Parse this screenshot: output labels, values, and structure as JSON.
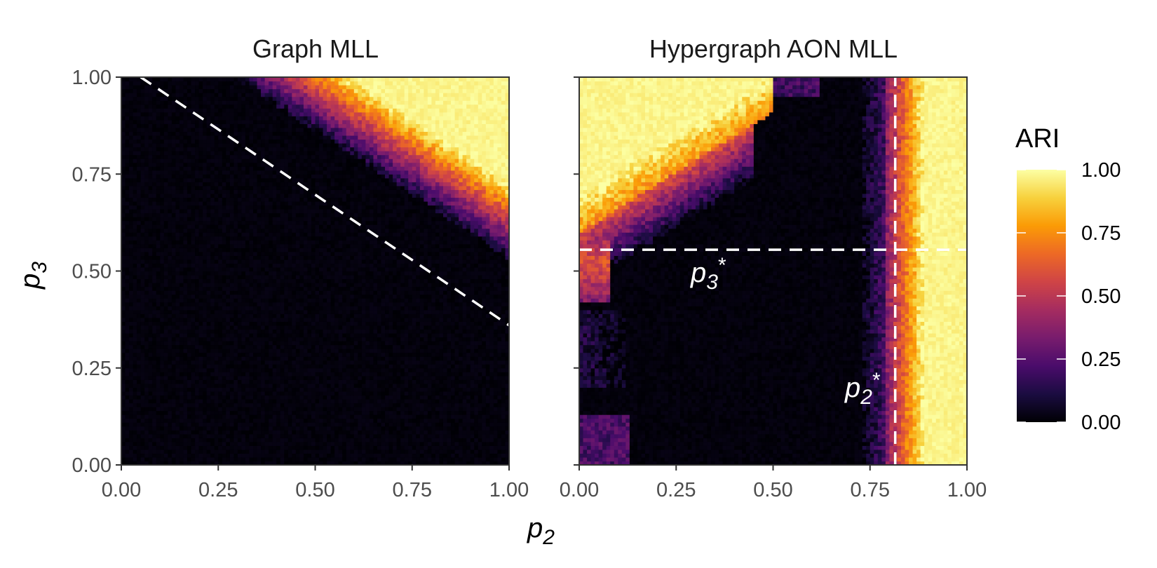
{
  "chart_data": [
    {
      "type": "heatmap",
      "title": "Graph MLL",
      "xlabel": "p2",
      "ylabel": "p3",
      "xlim": [
        0,
        1
      ],
      "ylim": [
        0,
        1
      ],
      "x_ticks": [
        "0.00",
        "0.25",
        "0.50",
        "0.75",
        "1.00"
      ],
      "y_ticks": [
        "0.00",
        "0.25",
        "0.50",
        "0.75",
        "1.00"
      ],
      "value": "ARI",
      "grid_resolution": 100,
      "reference_lines": [
        {
          "kind": "dashed",
          "from": {
            "x": 0.05,
            "y": 1.0
          },
          "to": {
            "x": 1.0,
            "y": 0.36
          }
        }
      ],
      "regions": [
        {
          "description": "black (ARI ~0) below diagonal boundary from (0.29,1.0) to (1.0,0.53)"
        },
        {
          "description": "bright yellow (ARI ~1) in upper-right corner; orange transition band"
        }
      ]
    },
    {
      "type": "heatmap",
      "title": "Hypergraph AON MLL",
      "xlabel": "p2",
      "ylabel": "p3",
      "xlim": [
        0,
        1
      ],
      "ylim": [
        0,
        1
      ],
      "x_ticks": [
        "0.00",
        "0.25",
        "0.50",
        "0.75",
        "1.00"
      ],
      "value": "ARI",
      "grid_resolution": 100,
      "reference_lines": [
        {
          "kind": "dashed-horizontal",
          "y": 0.555,
          "label": "p3*"
        },
        {
          "kind": "dashed-vertical",
          "x": 0.815,
          "label": "p2*"
        }
      ],
      "regions": [
        {
          "description": "yellow (ARI ~1) upper-left region x<0.5, y above curve from (0,0.6) to (0.5,0.92)"
        },
        {
          "description": "black (ARI ~0) central region"
        },
        {
          "description": "orange-to-yellow vertical band for x > 0.82"
        },
        {
          "description": "faint purple patch near bottom-left corner"
        }
      ]
    }
  ],
  "legend": {
    "title": "ARI",
    "labels": [
      "1.00",
      "0.75",
      "0.50",
      "0.25",
      "0.00"
    ],
    "range": [
      0,
      1
    ],
    "colormap": "inferno"
  },
  "shared_axis_titles": {
    "x_main": "p",
    "x_sub": "2",
    "y_main": "p",
    "y_sub": "3"
  },
  "annotations": {
    "p3_star_main": "p",
    "p3_star_sub": "3",
    "p3_star_sup": "*",
    "p2_star_main": "p",
    "p2_star_sub": "2",
    "p2_star_sup": "*"
  },
  "colors": {
    "inferno_stops": [
      "#000004",
      "#1b0c41",
      "#4a0c6b",
      "#781c6d",
      "#a52c60",
      "#cf4446",
      "#ed6925",
      "#fb9b06",
      "#f7d13d",
      "#fcffa4"
    ],
    "dashed_line": "#ffffff",
    "panel_border": "#333333"
  }
}
